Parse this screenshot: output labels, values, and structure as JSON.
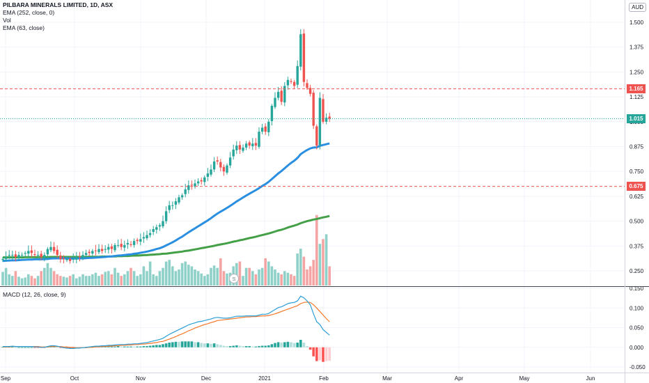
{
  "legend": {
    "title": "PILBARA MINERALS LIMITED, 1D, ASX",
    "ema_long": "EMA (252, close, 0)",
    "vol": "Vol",
    "ema_short": "EMA (63, close)"
  },
  "currency": "AUD",
  "macd_label": "MACD (12, 26, close, 9)",
  "markers": {
    "upper_line": "1.165",
    "last_price": "1.015",
    "lower_line": "0.675",
    "event_icon": "S"
  },
  "colors": {
    "up": "#26a69a",
    "down": "#ef5350",
    "vol_up": "#8fd1c9",
    "vol_down": "#f4a5a3",
    "ema_short": "#2a8fe0",
    "ema_long": "#43a047",
    "macd_line": "#2a9fd6",
    "signal_line": "#f5782a",
    "hline": "#ef5350",
    "last_price": "#26a69a"
  },
  "chart_data": [
    {
      "type": "candlestick",
      "title": "PILBARA MINERALS LIMITED, 1D, ASX",
      "y_axis_ticks": [
        "1.500",
        "1.375",
        "1.250",
        "1.125",
        "1.000",
        "0.875",
        "0.750",
        "0.625",
        "0.500",
        "0.375",
        "0.250"
      ],
      "x_axis_ticks": [
        "Sep",
        "Oct",
        "Nov",
        "Dec",
        "2021",
        "Feb",
        "Mar",
        "Apr",
        "May",
        "Jun"
      ],
      "ylim": [
        0.18,
        1.55
      ],
      "horizontal_lines": [
        1.165,
        0.675
      ],
      "last_price": 1.015,
      "closes": [
        0.31,
        0.32,
        0.33,
        0.33,
        0.32,
        0.33,
        0.33,
        0.34,
        0.35,
        0.34,
        0.33,
        0.33,
        0.32,
        0.33,
        0.36,
        0.37,
        0.35,
        0.33,
        0.31,
        0.31,
        0.31,
        0.3,
        0.31,
        0.32,
        0.32,
        0.33,
        0.34,
        0.34,
        0.35,
        0.35,
        0.36,
        0.35,
        0.36,
        0.37,
        0.36,
        0.38,
        0.38,
        0.37,
        0.38,
        0.39,
        0.38,
        0.4,
        0.4,
        0.41,
        0.42,
        0.43,
        0.44,
        0.46,
        0.47,
        0.48,
        0.5,
        0.55,
        0.58,
        0.58,
        0.6,
        0.62,
        0.63,
        0.66,
        0.68,
        0.68,
        0.69,
        0.7,
        0.7,
        0.72,
        0.74,
        0.76,
        0.8,
        0.8,
        0.77,
        0.75,
        0.78,
        0.82,
        0.86,
        0.88,
        0.86,
        0.87,
        0.89,
        0.88,
        0.89,
        0.88,
        0.95,
        0.97,
        0.95,
        1.0,
        1.08,
        1.12,
        1.15,
        1.1,
        1.18,
        1.21,
        1.2,
        1.18,
        1.28,
        1.44,
        1.2,
        1.17,
        1.14,
        0.98,
        0.88,
        1.12,
        1.0,
        1.02,
        1.015
      ],
      "volumes": [
        17,
        22,
        14,
        12,
        18,
        11,
        9,
        10,
        14,
        12,
        9,
        12,
        18,
        22,
        28,
        22,
        18,
        14,
        12,
        11,
        10,
        12,
        14,
        9,
        11,
        14,
        12,
        12,
        14,
        16,
        12,
        14,
        17,
        18,
        14,
        22,
        16,
        12,
        14,
        18,
        22,
        18,
        12,
        14,
        24,
        18,
        30,
        14,
        12,
        18,
        22,
        30,
        32,
        24,
        18,
        20,
        28,
        30,
        26,
        24,
        20,
        18,
        15,
        12,
        14,
        22,
        25,
        22,
        34,
        18,
        15,
        16,
        24,
        28,
        30,
        12,
        22,
        22,
        18,
        14,
        20,
        22,
        34,
        30,
        24,
        20,
        16,
        14,
        18,
        16,
        14,
        12,
        40,
        46,
        36,
        20,
        24,
        32,
        88,
        52,
        58,
        64,
        24
      ],
      "ema_63": [
        0.3,
        0.301,
        0.302,
        0.303,
        0.303,
        0.304,
        0.305,
        0.306,
        0.307,
        0.307,
        0.308,
        0.308,
        0.308,
        0.309,
        0.31,
        0.312,
        0.313,
        0.313,
        0.313,
        0.313,
        0.313,
        0.312,
        0.312,
        0.312,
        0.313,
        0.313,
        0.314,
        0.315,
        0.316,
        0.317,
        0.318,
        0.319,
        0.32,
        0.322,
        0.323,
        0.325,
        0.327,
        0.328,
        0.33,
        0.332,
        0.333,
        0.336,
        0.338,
        0.341,
        0.344,
        0.347,
        0.351,
        0.355,
        0.36,
        0.364,
        0.37,
        0.378,
        0.386,
        0.394,
        0.403,
        0.413,
        0.422,
        0.433,
        0.444,
        0.454,
        0.464,
        0.474,
        0.484,
        0.494,
        0.504,
        0.515,
        0.527,
        0.538,
        0.548,
        0.557,
        0.567,
        0.577,
        0.588,
        0.599,
        0.609,
        0.619,
        0.629,
        0.638,
        0.647,
        0.656,
        0.666,
        0.677,
        0.686,
        0.698,
        0.712,
        0.726,
        0.74,
        0.752,
        0.766,
        0.78,
        0.793,
        0.804,
        0.818,
        0.837,
        0.848,
        0.858,
        0.866,
        0.87,
        0.871,
        0.879,
        0.883,
        0.887,
        0.891
      ],
      "ema_252": [
        0.318,
        0.318,
        0.318,
        0.318,
        0.318,
        0.318,
        0.318,
        0.319,
        0.319,
        0.319,
        0.319,
        0.319,
        0.319,
        0.319,
        0.319,
        0.32,
        0.32,
        0.32,
        0.32,
        0.32,
        0.32,
        0.32,
        0.32,
        0.32,
        0.32,
        0.32,
        0.32,
        0.321,
        0.321,
        0.321,
        0.321,
        0.322,
        0.322,
        0.322,
        0.323,
        0.323,
        0.324,
        0.324,
        0.325,
        0.325,
        0.326,
        0.327,
        0.327,
        0.328,
        0.329,
        0.33,
        0.331,
        0.332,
        0.333,
        0.334,
        0.336,
        0.337,
        0.339,
        0.341,
        0.343,
        0.345,
        0.347,
        0.35,
        0.352,
        0.355,
        0.358,
        0.361,
        0.364,
        0.367,
        0.37,
        0.373,
        0.376,
        0.38,
        0.383,
        0.386,
        0.389,
        0.393,
        0.397,
        0.4,
        0.404,
        0.407,
        0.411,
        0.415,
        0.418,
        0.422,
        0.426,
        0.43,
        0.434,
        0.438,
        0.443,
        0.448,
        0.453,
        0.457,
        0.462,
        0.468,
        0.473,
        0.478,
        0.483,
        0.49,
        0.495,
        0.5,
        0.504,
        0.508,
        0.511,
        0.515,
        0.519,
        0.522,
        0.526
      ]
    },
    {
      "type": "macd",
      "title": "MACD (12, 26, close, 9)",
      "y_axis_ticks": [
        "0.150",
        "0.100",
        "0.050",
        "0.000",
        "-0.050"
      ],
      "ylim": [
        -0.06,
        0.155
      ],
      "macd": [
        0.002,
        0.002,
        0.002,
        0.003,
        0.002,
        0.002,
        0.002,
        0.002,
        0.002,
        0.002,
        0.001,
        0.001,
        0.0,
        0.0,
        0.002,
        0.004,
        0.004,
        0.003,
        0.001,
        -0.001,
        -0.002,
        -0.003,
        -0.003,
        -0.002,
        -0.002,
        -0.001,
        0.0,
        0.001,
        0.002,
        0.003,
        0.003,
        0.004,
        0.004,
        0.005,
        0.005,
        0.006,
        0.007,
        0.007,
        0.007,
        0.008,
        0.008,
        0.009,
        0.009,
        0.01,
        0.011,
        0.012,
        0.014,
        0.016,
        0.018,
        0.02,
        0.023,
        0.028,
        0.033,
        0.037,
        0.041,
        0.045,
        0.049,
        0.053,
        0.057,
        0.06,
        0.062,
        0.065,
        0.066,
        0.068,
        0.07,
        0.072,
        0.075,
        0.076,
        0.075,
        0.074,
        0.074,
        0.075,
        0.077,
        0.079,
        0.079,
        0.079,
        0.08,
        0.08,
        0.08,
        0.08,
        0.082,
        0.084,
        0.084,
        0.086,
        0.091,
        0.096,
        0.101,
        0.103,
        0.107,
        0.111,
        0.113,
        0.114,
        0.118,
        0.13,
        0.126,
        0.118,
        0.108,
        0.085,
        0.065,
        0.058,
        0.045,
        0.038,
        0.031
      ],
      "signal": [
        0.001,
        0.001,
        0.001,
        0.002,
        0.002,
        0.002,
        0.002,
        0.002,
        0.002,
        0.002,
        0.002,
        0.002,
        0.001,
        0.001,
        0.001,
        0.002,
        0.002,
        0.002,
        0.002,
        0.001,
        0.001,
        0.0,
        0.0,
        -0.001,
        -0.001,
        -0.001,
        -0.001,
        0.0,
        0.0,
        0.001,
        0.001,
        0.002,
        0.002,
        0.003,
        0.003,
        0.004,
        0.004,
        0.005,
        0.005,
        0.006,
        0.006,
        0.007,
        0.007,
        0.008,
        0.008,
        0.009,
        0.01,
        0.011,
        0.012,
        0.014,
        0.015,
        0.018,
        0.021,
        0.024,
        0.027,
        0.031,
        0.034,
        0.038,
        0.042,
        0.045,
        0.049,
        0.052,
        0.055,
        0.058,
        0.06,
        0.063,
        0.065,
        0.068,
        0.069,
        0.07,
        0.071,
        0.072,
        0.073,
        0.074,
        0.075,
        0.076,
        0.077,
        0.077,
        0.078,
        0.078,
        0.079,
        0.08,
        0.08,
        0.081,
        0.083,
        0.085,
        0.088,
        0.091,
        0.094,
        0.097,
        0.1,
        0.103,
        0.106,
        0.111,
        0.114,
        0.115,
        0.114,
        0.108,
        0.1,
        0.091,
        0.082,
        0.073,
        0.065
      ]
    }
  ]
}
